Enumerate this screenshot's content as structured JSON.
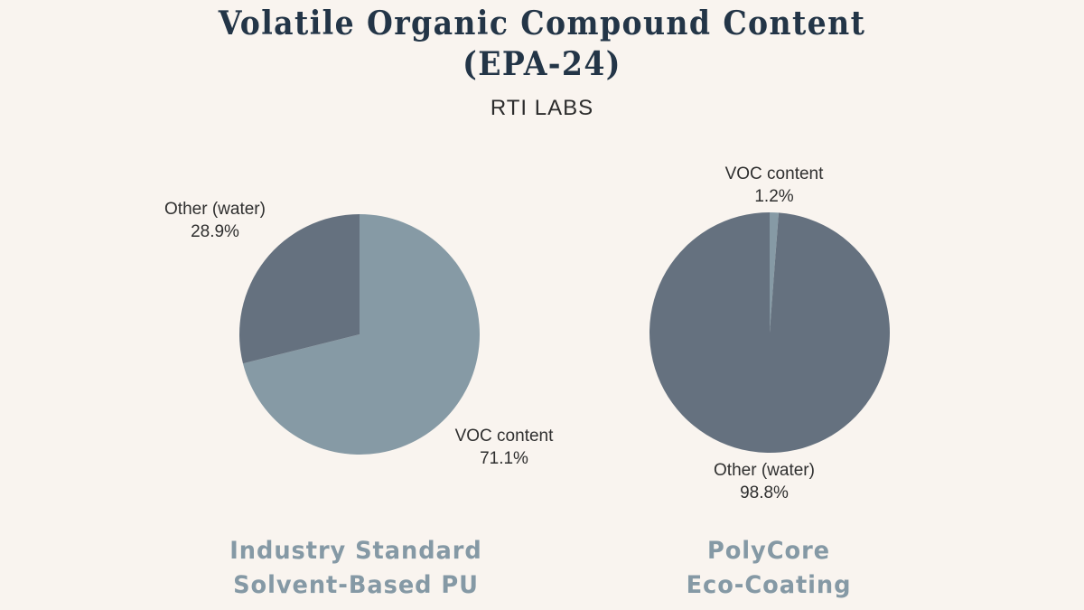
{
  "header": {
    "title_line1": "Volatile Organic Compound Content",
    "title_line2": "(EPA-24)",
    "subtitle": "RTI LABS"
  },
  "colors": {
    "background": "#f9f4ef",
    "voc": "#869aa5",
    "other": "#65717f",
    "title": "#233547",
    "product_name": "#8599a5"
  },
  "charts": [
    {
      "name_line1": "Industry Standard",
      "name_line2": "Solvent-Based PU",
      "slices": [
        {
          "label": "VOC content",
          "pct_text": "71.1%"
        },
        {
          "label": "Other (water)",
          "pct_text": "28.9%"
        }
      ]
    },
    {
      "name_line1": "PolyCore",
      "name_line2": "Eco-Coating",
      "slices": [
        {
          "label": "VOC content",
          "pct_text": "1.2%"
        },
        {
          "label": "Other (water)",
          "pct_text": "98.8%"
        }
      ]
    }
  ],
  "chart_data": [
    {
      "type": "pie",
      "title": "Volatile Organic Compound Content (EPA-24) — Industry Standard Solvent-Based PU",
      "subtitle": "RTI LABS",
      "categories": [
        "VOC content",
        "Other (water)"
      ],
      "values": [
        71.1,
        28.9
      ],
      "colors": [
        "#869aa5",
        "#65717f"
      ],
      "start_angle": "12 o'clock, clockwise"
    },
    {
      "type": "pie",
      "title": "Volatile Organic Compound Content (EPA-24) — PolyCore Eco-Coating",
      "subtitle": "RTI LABS",
      "categories": [
        "VOC content",
        "Other (water)"
      ],
      "values": [
        1.2,
        98.8
      ],
      "colors": [
        "#869aa5",
        "#65717f"
      ],
      "start_angle": "12 o'clock, clockwise"
    }
  ]
}
